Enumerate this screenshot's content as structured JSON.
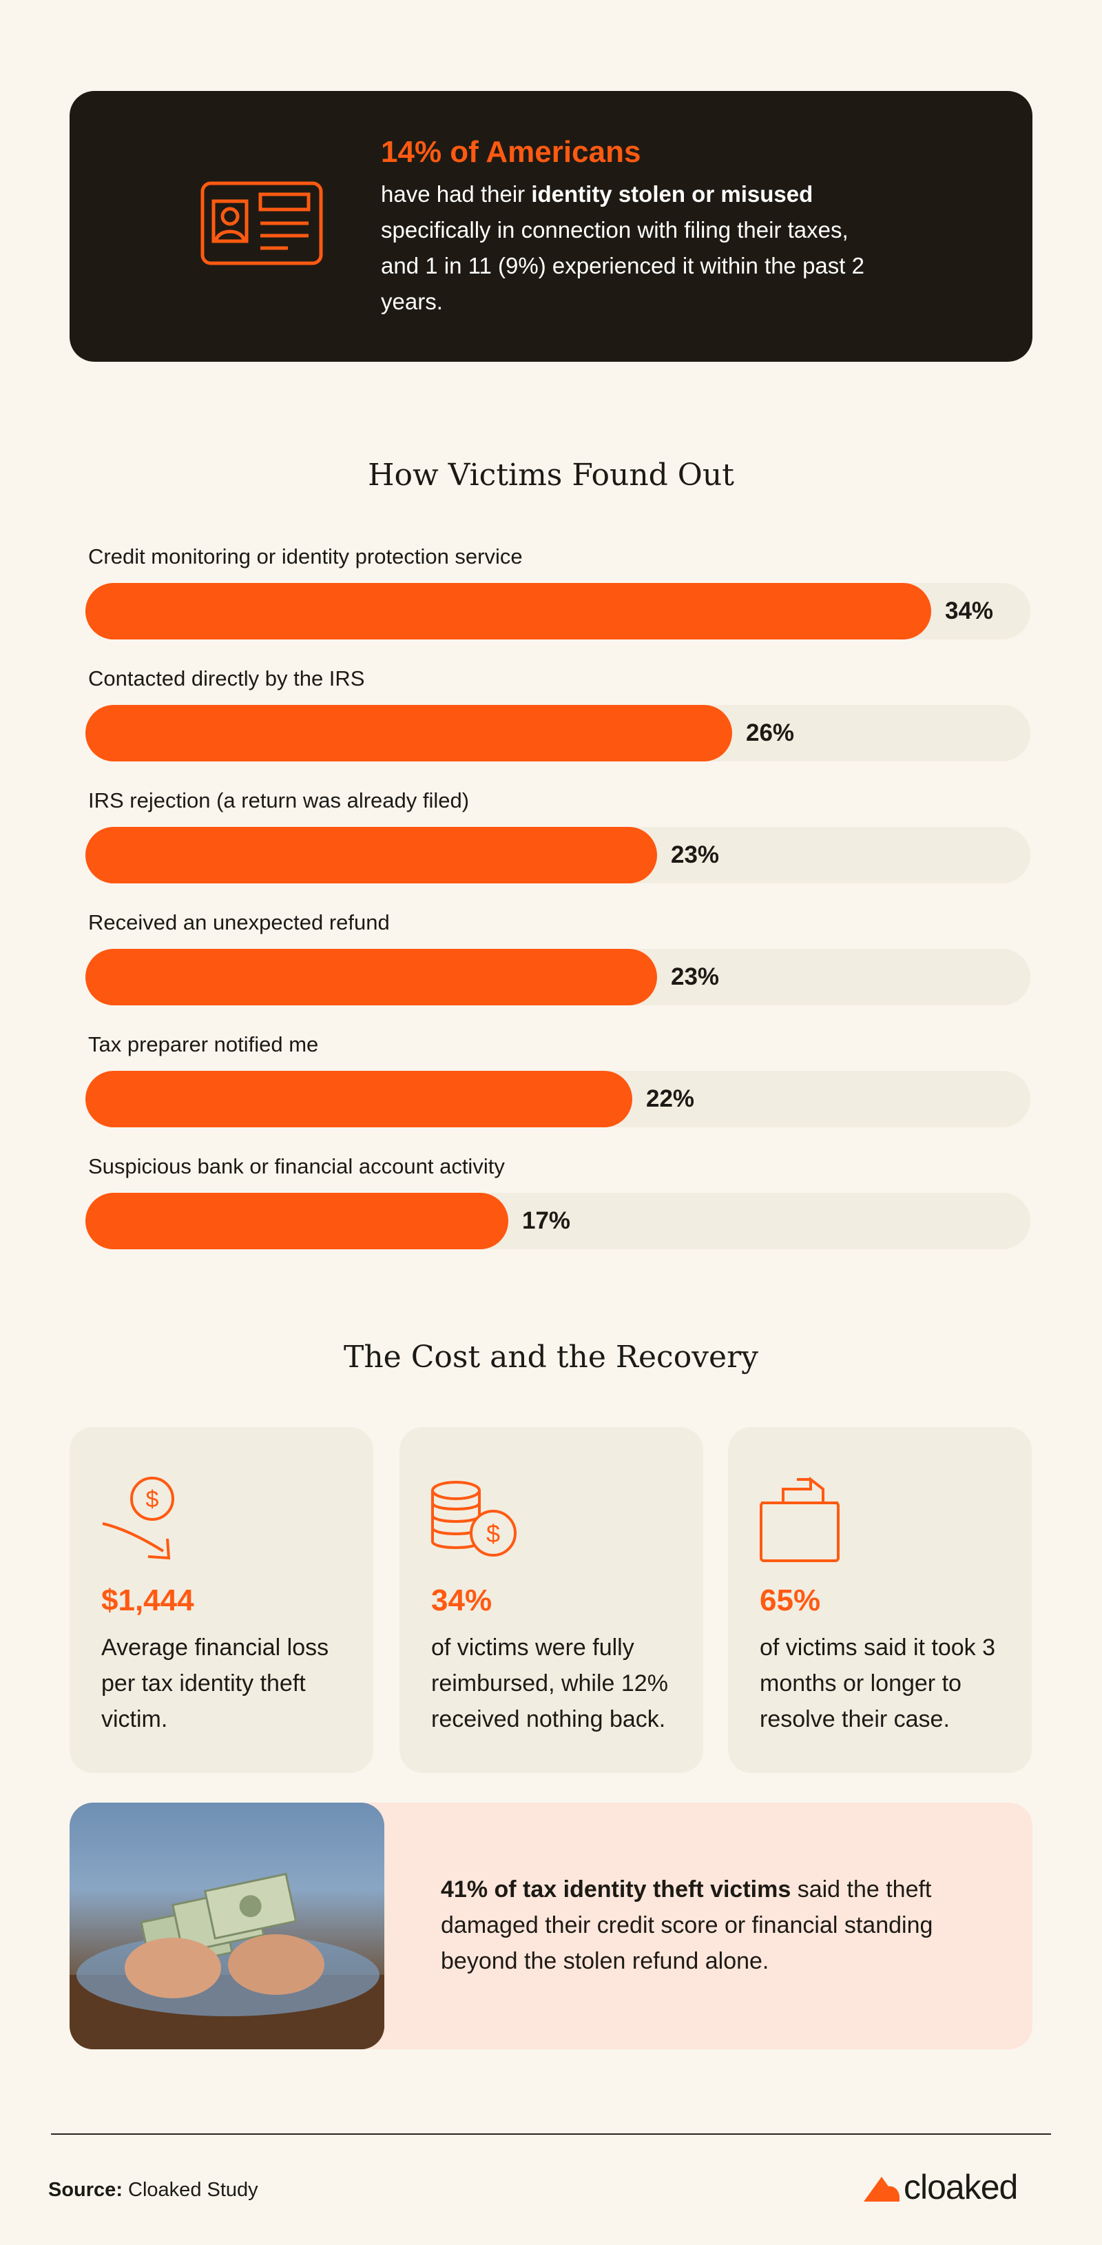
{
  "hero": {
    "title": "14% of Americans",
    "line_a": "have had their ",
    "line_b": "identity stolen or misused",
    "line_c": " specifically in connection with filing their taxes, and 1 in 11 (9%) experienced it within the past 2 years.",
    "icon": "id-card-icon"
  },
  "chart_data": {
    "type": "bar",
    "orientation": "horizontal",
    "title": "How Victims Found Out",
    "categories": [
      "Credit monitoring or identity protection service",
      "Contacted directly by the IRS",
      "IRS rejection (a return was already filed)",
      "Received an unexpected refund",
      "Tax preparer notified me",
      "Suspicious bank or financial account activity"
    ],
    "values": [
      34,
      26,
      23,
      23,
      22,
      17
    ],
    "value_labels": [
      "34%",
      "26%",
      "23%",
      "23%",
      "22%",
      "17%"
    ],
    "unit": "%",
    "xlim": [
      0,
      38
    ],
    "colors": {
      "bar": "#fe5710",
      "track": "#f2ede1"
    }
  },
  "cost_section": {
    "title": "The Cost and the Recovery",
    "cards": [
      {
        "icon": "dollar-down-icon",
        "stat": "$1,444",
        "text": "Average financial loss per tax identity theft victim."
      },
      {
        "icon": "coin-stack-icon",
        "stat": "34%",
        "text": "of victims were fully reimbursed, while 12% received nothing back."
      },
      {
        "icon": "document-tray-icon",
        "stat": "65%",
        "text": "of victims said it took 3 months or longer to resolve their case."
      }
    ]
  },
  "callout": {
    "part_a": "41% of ",
    "part_b": "tax identity theft victims",
    "part_c": " said the theft damaged their credit score or financial standing beyond the stolen refund alone.",
    "photo": "hands-counting-cash-photo"
  },
  "footer": {
    "source_label": "Source:",
    "source_value": " Cloaked Study",
    "brand": "cloaked"
  },
  "colors": {
    "accent": "#fe5a12",
    "dark": "#1e1a13",
    "background": "#faf6ee",
    "card": "#f2ede1",
    "callout": "#fde6db"
  }
}
